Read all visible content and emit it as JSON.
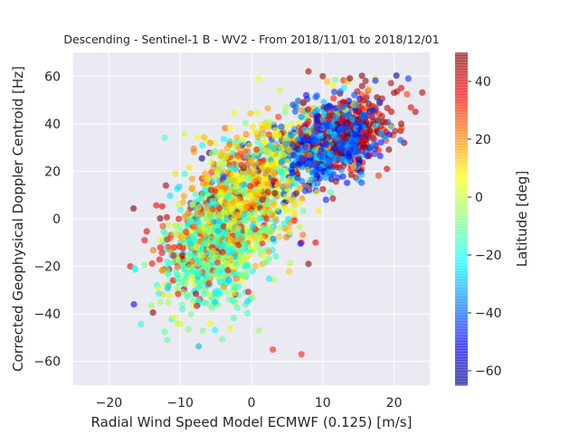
{
  "chart_data": {
    "type": "scatter",
    "title": "Descending - Sentinel-1 B - WV2 - From 2018/11/01 to 2018/12/01",
    "xlabel": "Radial Wind Speed Model ECMWF (0.125) [m/s]",
    "ylabel": "Corrected Geophysical Doppler Centroid [Hz]",
    "xlim": [
      -25,
      25
    ],
    "ylim": [
      -70,
      70
    ],
    "xticks": [
      -20,
      -10,
      0,
      10,
      20
    ],
    "xtick_labels": [
      "−20",
      "−10",
      "0",
      "10",
      "20"
    ],
    "yticks": [
      -60,
      -40,
      -20,
      0,
      20,
      40,
      60
    ],
    "ytick_labels": [
      "−60",
      "−40",
      "−20",
      "0",
      "20",
      "40",
      "60"
    ],
    "grid": true,
    "background": "#eaeaf2",
    "point_alpha": 0.6,
    "colorbar": {
      "label": "Latitude [deg]",
      "colormap": "jet",
      "range": [
        -65,
        50
      ],
      "ticks": [
        -60,
        -40,
        -20,
        0,
        20,
        40
      ],
      "tick_labels": [
        "−60",
        "−40",
        "−20",
        "0",
        "20",
        "40"
      ]
    },
    "clusters": [
      {
        "x_mean": 11,
        "x_sd": 3.2,
        "y_mean": 32,
        "y_sd": 8,
        "lat_mean": -40,
        "lat_sd": 10,
        "count": 650
      },
      {
        "x_mean": 13,
        "x_sd": 3.5,
        "y_mean": 36,
        "y_sd": 9,
        "lat_mean": 40,
        "lat_sd": 7,
        "count": 280
      },
      {
        "x_mean": -5,
        "x_sd": 3.6,
        "y_mean": -12,
        "y_sd": 13,
        "lat_mean": -12,
        "lat_sd": 9,
        "count": 700
      },
      {
        "x_mean": -2,
        "x_sd": 3.8,
        "y_mean": 5,
        "y_sd": 13,
        "lat_mean": 12,
        "lat_sd": 9,
        "count": 380
      },
      {
        "x_mean": 2,
        "x_sd": 5,
        "y_mean": 18,
        "y_sd": 12,
        "lat_mean": -5,
        "lat_sd": 30,
        "count": 320
      },
      {
        "x_mean": -7,
        "x_sd": 4,
        "y_mean": -10,
        "y_sd": 14,
        "lat_mean": 35,
        "lat_sd": 8,
        "count": 120
      },
      {
        "x_mean": 4,
        "x_sd": 5,
        "y_mean": 35,
        "y_sd": 8,
        "lat_mean": 10,
        "lat_sd": 12,
        "count": 140
      }
    ],
    "outliers": [
      {
        "x": -16.5,
        "y": -36,
        "lat": -50
      },
      {
        "x": -17,
        "y": -20,
        "lat": 38
      },
      {
        "x": -15,
        "y": -9,
        "lat": 36
      },
      {
        "x": -12,
        "y": 14,
        "lat": 45
      },
      {
        "x": 3,
        "y": -55,
        "lat": 32
      },
      {
        "x": 7,
        "y": -57,
        "lat": 32
      },
      {
        "x": 8,
        "y": 62,
        "lat": 45
      },
      {
        "x": 10,
        "y": 60,
        "lat": 48
      },
      {
        "x": 1,
        "y": 59,
        "lat": 5
      },
      {
        "x": 16,
        "y": 58,
        "lat": 45
      },
      {
        "x": 20,
        "y": 53,
        "lat": 45
      },
      {
        "x": 21,
        "y": 55,
        "lat": 40
      },
      {
        "x": 22,
        "y": 59,
        "lat": -45
      },
      {
        "x": 23,
        "y": 45,
        "lat": 45
      },
      {
        "x": 21,
        "y": 40,
        "lat": 48
      },
      {
        "x": 19,
        "y": 21,
        "lat": 42
      },
      {
        "x": 9,
        "y": -10,
        "lat": 38
      },
      {
        "x": 7,
        "y": -10,
        "lat": 36
      },
      {
        "x": 8,
        "y": -19,
        "lat": 48
      },
      {
        "x": 1,
        "y": -47,
        "lat": -5
      },
      {
        "x": -3,
        "y": -46,
        "lat": 3
      }
    ]
  }
}
